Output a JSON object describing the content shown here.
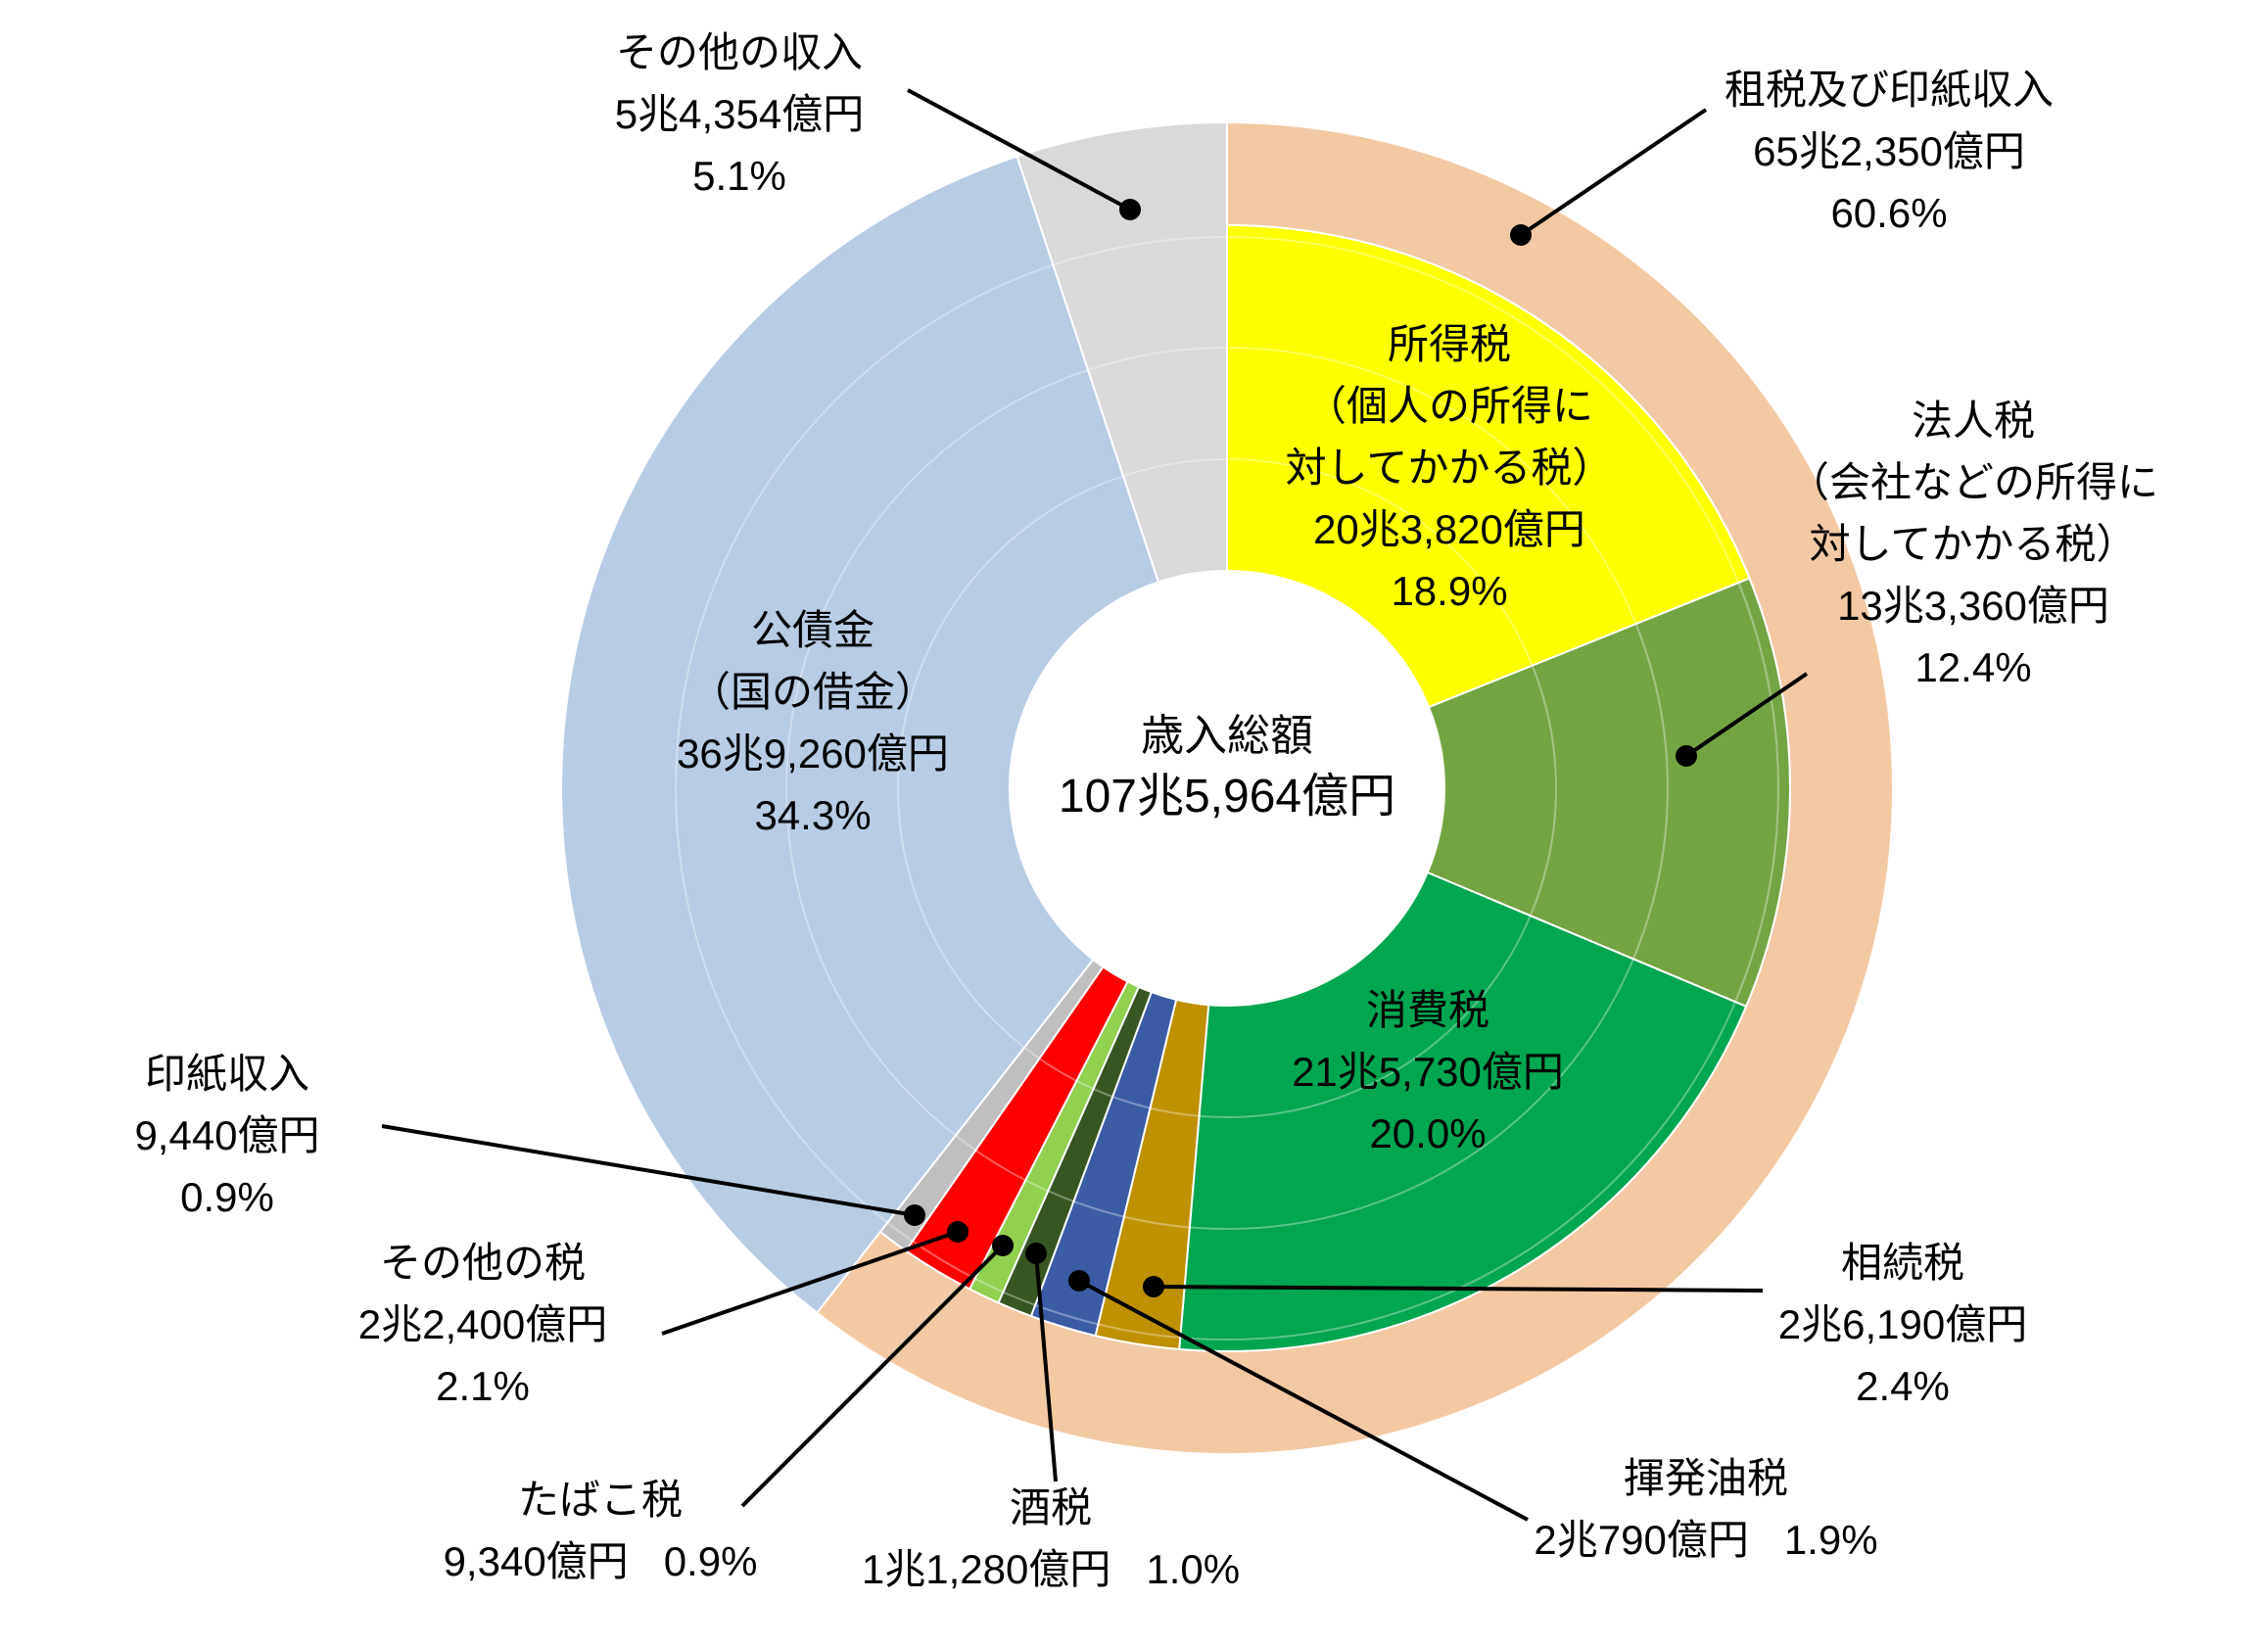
{
  "chart_data": {
    "type": "pie",
    "title": "歳入総額 107兆5,964億円",
    "center": {
      "title": "歳入総額",
      "total": "107兆5,964億円"
    },
    "legend_position": "none",
    "outer_ring": {
      "key": "tax-and-stamp-revenue",
      "label": "租税及び印紙収入",
      "amount": "65兆2,350億円",
      "percent": 60.6,
      "percent_label": "60.6%",
      "color": "#F3C9A4"
    },
    "segments": [
      {
        "key": "income-tax",
        "label": "所得税",
        "sublabel_lines": [
          "（個人の所得に",
          "対してかかる税）"
        ],
        "amount": "20兆3,820億円",
        "percent": 18.9,
        "percent_label": "18.9%",
        "color": "#FFFF00",
        "group": "tax"
      },
      {
        "key": "corporate-tax",
        "label": "法人税",
        "sublabel_lines": [
          "（会社などの所得に",
          "対してかかる税）"
        ],
        "amount": "13兆3,360億円",
        "percent": 12.4,
        "percent_label": "12.4%",
        "color": "#74A442",
        "group": "tax"
      },
      {
        "key": "consumption-tax",
        "label": "消費税",
        "amount": "21兆5,730億円",
        "percent": 20.0,
        "percent_label": "20.0%",
        "color": "#00A650",
        "group": "tax"
      },
      {
        "key": "inheritance-tax",
        "label": "相続税",
        "amount": "2兆6,190億円",
        "percent": 2.4,
        "percent_label": "2.4%",
        "color": "#BF9000",
        "group": "tax"
      },
      {
        "key": "gasoline-tax",
        "label": "揮発油税",
        "amount": "2兆790億円",
        "percent": 1.9,
        "percent_label": "1.9%",
        "color": "#3B5BA5",
        "group": "tax"
      },
      {
        "key": "liquor-tax",
        "label": "酒税",
        "amount": "1兆1,280億円",
        "percent": 1.0,
        "percent_label": "1.0%",
        "color": "#375623",
        "group": "tax"
      },
      {
        "key": "tobacco-tax",
        "label": "たばこ税",
        "amount": "9,340億円",
        "percent": 0.9,
        "percent_label": "0.9%",
        "color": "#92D050",
        "group": "tax"
      },
      {
        "key": "other-taxes",
        "label": "その他の税",
        "amount": "2兆2,400億円",
        "percent": 2.1,
        "percent_label": "2.1%",
        "color": "#FF0000",
        "group": "tax"
      },
      {
        "key": "stamp-revenue",
        "label": "印紙収入",
        "amount": "9,440億円",
        "percent": 0.9,
        "percent_label": "0.9%",
        "color": "#BFBFBF",
        "group": "tax"
      },
      {
        "key": "government-bonds",
        "label": "公債金",
        "sublabel_lines": [
          "（国の借金）"
        ],
        "amount": "36兆9,260億円",
        "percent": 34.3,
        "percent_label": "34.3%",
        "color": "#B8CCE4",
        "group": "non-tax"
      },
      {
        "key": "other-revenue",
        "label": "その他の収入",
        "amount": "5兆4,354億円",
        "percent": 5.1,
        "percent_label": "5.1%",
        "color": "#D9D9D9",
        "group": "non-tax"
      }
    ]
  }
}
